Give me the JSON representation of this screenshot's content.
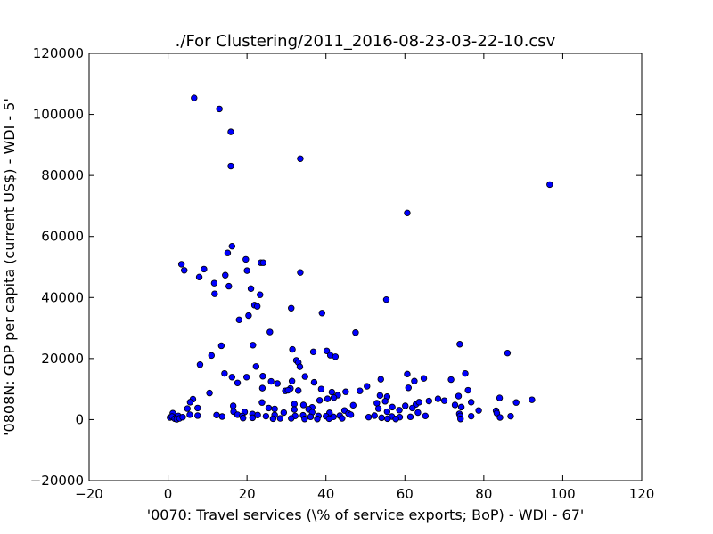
{
  "chart_data": {
    "type": "scatter",
    "title": "./For Clustering/2011_2016-08-23-03-22-10.csv",
    "xlabel": "'0070: Travel services  (\\% of service exports; BoP) - WDI - 67'",
    "ylabel": "'0808N: GDP per capita  (current US$) - WDI - 5'",
    "xlim": [
      -20,
      120
    ],
    "ylim": [
      -20000,
      120000
    ],
    "xticks": [
      -20,
      0,
      20,
      40,
      60,
      80,
      100,
      120
    ],
    "yticks": [
      -20000,
      0,
      20000,
      40000,
      60000,
      80000,
      100000,
      120000
    ],
    "xtick_labels": [
      "−20",
      "0",
      "20",
      "40",
      "60",
      "80",
      "100",
      "120"
    ],
    "ytick_labels": [
      "−20000",
      "0",
      "20000",
      "40000",
      "60000",
      "80000",
      "100000",
      "120000"
    ],
    "grid": false,
    "marker_color": "#0000ff",
    "points": [
      [
        6.6,
        105400
      ],
      [
        13.0,
        101800
      ],
      [
        15.9,
        94300
      ],
      [
        15.9,
        83100
      ],
      [
        33.5,
        85500
      ],
      [
        96.7,
        77000
      ],
      [
        60.6,
        67700
      ],
      [
        16.2,
        56800
      ],
      [
        15.1,
        54600
      ],
      [
        19.7,
        52500
      ],
      [
        3.4,
        50900
      ],
      [
        4.1,
        48900
      ],
      [
        9.1,
        49300
      ],
      [
        23.5,
        51400
      ],
      [
        24.1,
        51400
      ],
      [
        20.0,
        48800
      ],
      [
        14.5,
        47300
      ],
      [
        7.9,
        46700
      ],
      [
        33.5,
        48200
      ],
      [
        11.7,
        44700
      ],
      [
        15.4,
        43700
      ],
      [
        21.0,
        42900
      ],
      [
        11.8,
        41200
      ],
      [
        23.3,
        40900
      ],
      [
        21.9,
        37500
      ],
      [
        22.6,
        37100
      ],
      [
        55.3,
        39300
      ],
      [
        31.2,
        36500
      ],
      [
        20.4,
        34100
      ],
      [
        18.0,
        32700
      ],
      [
        39.0,
        34900
      ],
      [
        25.8,
        28700
      ],
      [
        47.5,
        28500
      ],
      [
        13.5,
        24200
      ],
      [
        21.5,
        24400
      ],
      [
        73.9,
        24700
      ],
      [
        31.5,
        23000
      ],
      [
        36.8,
        22200
      ],
      [
        40.2,
        22500
      ],
      [
        41.1,
        21100
      ],
      [
        86.0,
        21800
      ],
      [
        42.4,
        20600
      ],
      [
        11.0,
        21000
      ],
      [
        32.5,
        19400
      ],
      [
        33.0,
        18700
      ],
      [
        8.1,
        18000
      ],
      [
        22.3,
        17400
      ],
      [
        33.4,
        17300
      ],
      [
        14.3,
        15100
      ],
      [
        75.3,
        15100
      ],
      [
        60.6,
        14900
      ],
      [
        16.2,
        13900
      ],
      [
        19.9,
        13900
      ],
      [
        34.7,
        14100
      ],
      [
        24.0,
        14200
      ],
      [
        53.9,
        13200
      ],
      [
        62.4,
        12600
      ],
      [
        64.8,
        13500
      ],
      [
        71.7,
        13100
      ],
      [
        17.6,
        12000
      ],
      [
        26.1,
        12500
      ],
      [
        27.7,
        11800
      ],
      [
        31.4,
        12600
      ],
      [
        37.0,
        12200
      ],
      [
        23.9,
        10300
      ],
      [
        31.0,
        10200
      ],
      [
        50.4,
        10900
      ],
      [
        60.9,
        10400
      ],
      [
        29.7,
        9400
      ],
      [
        33.0,
        9500
      ],
      [
        38.8,
        10000
      ],
      [
        41.5,
        9000
      ],
      [
        45.0,
        9100
      ],
      [
        48.6,
        9400
      ],
      [
        76.0,
        9600
      ],
      [
        10.5,
        8700
      ],
      [
        30.4,
        9600
      ],
      [
        43.0,
        8000
      ],
      [
        42.0,
        7200
      ],
      [
        53.7,
        7900
      ],
      [
        55.5,
        7500
      ],
      [
        73.6,
        7700
      ],
      [
        84.0,
        7100
      ],
      [
        92.2,
        6500
      ],
      [
        6.3,
        6700
      ],
      [
        40.4,
        6800
      ],
      [
        55.0,
        6000
      ],
      [
        66.1,
        6100
      ],
      [
        68.4,
        6800
      ],
      [
        70.0,
        6200
      ],
      [
        76.8,
        5700
      ],
      [
        88.2,
        5600
      ],
      [
        5.6,
        5700
      ],
      [
        23.8,
        5600
      ],
      [
        32.0,
        5100
      ],
      [
        38.4,
        6300
      ],
      [
        52.9,
        5400
      ],
      [
        62.8,
        5000
      ],
      [
        63.6,
        5700
      ],
      [
        72.7,
        4800
      ],
      [
        16.5,
        4500
      ],
      [
        34.3,
        4800
      ],
      [
        36.5,
        4000
      ],
      [
        46.9,
        4700
      ],
      [
        56.8,
        4100
      ],
      [
        60.1,
        4500
      ],
      [
        74.3,
        4100
      ],
      [
        4.9,
        3600
      ],
      [
        7.5,
        3800
      ],
      [
        25.5,
        3800
      ],
      [
        27.0,
        3500
      ],
      [
        32.0,
        3300
      ],
      [
        35.6,
        3400
      ],
      [
        44.7,
        3000
      ],
      [
        53.3,
        3600
      ],
      [
        58.6,
        3100
      ],
      [
        61.9,
        3800
      ],
      [
        78.7,
        3000
      ],
      [
        83.1,
        2900
      ],
      [
        16.6,
        2600
      ],
      [
        19.4,
        2500
      ],
      [
        29.3,
        2300
      ],
      [
        36.5,
        2400
      ],
      [
        40.9,
        2200
      ],
      [
        45.7,
        2000
      ],
      [
        55.5,
        2600
      ],
      [
        63.3,
        2300
      ],
      [
        73.8,
        1900
      ],
      [
        83.3,
        2100
      ],
      [
        1.2,
        2100
      ],
      [
        2.6,
        1200
      ],
      [
        5.5,
        1600
      ],
      [
        7.5,
        1300
      ],
      [
        12.3,
        1500
      ],
      [
        13.7,
        1000
      ],
      [
        17.6,
        1600
      ],
      [
        18.8,
        1200
      ],
      [
        21.4,
        1800
      ],
      [
        22.7,
        1500
      ],
      [
        24.8,
        1100
      ],
      [
        27.0,
        1500
      ],
      [
        32.2,
        1200
      ],
      [
        34.2,
        1400
      ],
      [
        36.1,
        900
      ],
      [
        38.1,
        1200
      ],
      [
        40.0,
        1100
      ],
      [
        41.9,
        900
      ],
      [
        43.5,
        1300
      ],
      [
        46.3,
        1600
      ],
      [
        50.8,
        800
      ],
      [
        52.3,
        1300
      ],
      [
        54.1,
        600
      ],
      [
        56.7,
        1000
      ],
      [
        58.7,
        800
      ],
      [
        61.4,
        900
      ],
      [
        65.2,
        1200
      ],
      [
        74.0,
        1200
      ],
      [
        76.8,
        1100
      ],
      [
        84.1,
        700
      ],
      [
        86.8,
        1100
      ],
      [
        0.5,
        700
      ],
      [
        1.0,
        1000
      ],
      [
        1.7,
        300
      ],
      [
        2.2,
        100
      ],
      [
        2.9,
        400
      ],
      [
        3.7,
        800
      ],
      [
        19.0,
        500
      ],
      [
        21.4,
        600
      ],
      [
        26.6,
        300
      ],
      [
        28.4,
        400
      ],
      [
        31.2,
        400
      ],
      [
        34.6,
        200
      ],
      [
        37.8,
        200
      ],
      [
        40.8,
        300
      ],
      [
        44.1,
        400
      ],
      [
        55.6,
        300
      ],
      [
        57.7,
        200
      ],
      [
        74.1,
        200
      ]
    ]
  }
}
